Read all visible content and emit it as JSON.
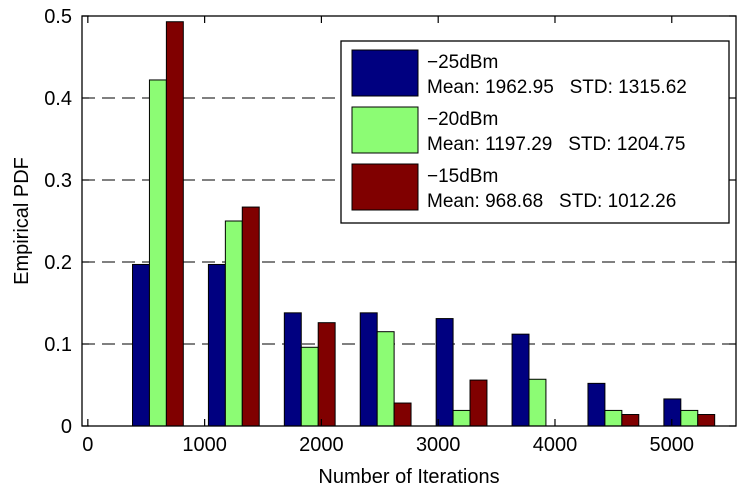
{
  "chart_data": {
    "type": "bar",
    "title": "",
    "xlabel": "Number of Iterations",
    "ylabel": "Empirical PDF",
    "xlim": [
      -50,
      5550
    ],
    "ylim": [
      0,
      0.5
    ],
    "xticks": [
      0,
      1000,
      2000,
      3000,
      4000,
      5000
    ],
    "yticks": [
      0,
      0.1,
      0.2,
      0.3,
      0.4,
      0.5
    ],
    "xtick_labels": [
      "0",
      "1000",
      "2000",
      "3000",
      "4000",
      "5000"
    ],
    "ytick_labels": [
      "0",
      "0.1",
      "0.2",
      "0.3",
      "0.4",
      "0.5"
    ],
    "grid": "horizontal dashed",
    "legend_position": "top-right",
    "bin_centers": [
      600,
      1250,
      1900,
      2550,
      3200,
      3850,
      4500,
      5150
    ],
    "bar_width": 145,
    "series": [
      {
        "name": "−25dBm",
        "stats": "Mean: 1962.95   STD: 1315.62",
        "color": "#000080",
        "values": [
          0.197,
          0.197,
          0.138,
          0.138,
          0.131,
          0.112,
          0.052,
          0.033
        ]
      },
      {
        "name": "−20dBm",
        "stats": "Mean: 1197.29   STD: 1204.75",
        "color": "#8cfc74",
        "values": [
          0.422,
          0.25,
          0.096,
          0.115,
          0.019,
          0.057,
          0.019,
          0.019
        ]
      },
      {
        "name": "−15dBm",
        "stats": "Mean: 968.68   STD: 1012.26",
        "color": "#800000",
        "values": [
          0.493,
          0.267,
          0.126,
          0.028,
          0.056,
          0,
          0.014,
          0.014
        ]
      }
    ]
  }
}
